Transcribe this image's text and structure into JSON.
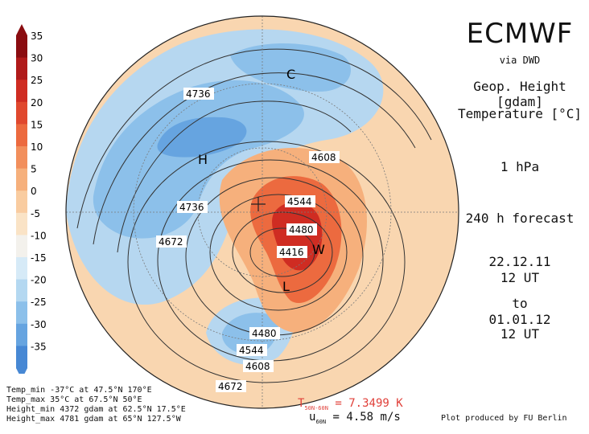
{
  "header": {
    "title": "ECMWF",
    "source": "via DWD",
    "param1": "Geop. Height [gdam]",
    "param2": "Temperature [°C]",
    "level": "1 hPa",
    "forecast": "240 h forecast",
    "date_from": "22.12.11",
    "time_from": "12 UT",
    "to": "to",
    "date_to": "01.01.12",
    "time_to": "12 UT"
  },
  "colorbar": {
    "ticks": [
      "35",
      "30",
      "25",
      "20",
      "15",
      "10",
      "5",
      "0",
      "-5",
      "-10",
      "-15",
      "-20",
      "-25",
      "-30",
      "-35"
    ],
    "colors": [
      "#8a0c10",
      "#b01a1a",
      "#cf2c22",
      "#e0482e",
      "#ec6a3f",
      "#f28f5c",
      "#f6b07c",
      "#f9cca0",
      "#fae3c6",
      "#f3f1ec",
      "#d6eaf7",
      "#b4d8f1",
      "#8cc0ea",
      "#66a4e0",
      "#4788d4"
    ]
  },
  "map": {
    "pressure_systems": [
      {
        "label": "C"
      },
      {
        "label": "H"
      },
      {
        "label": "W"
      },
      {
        "label": "L"
      }
    ],
    "contour_labels": [
      "4736",
      "4736",
      "4672",
      "4608",
      "4544",
      "4480",
      "4416",
      "4480",
      "4544",
      "4608",
      "4672"
    ]
  },
  "stats": [
    "Temp_min -37°C at 47.5°N 170°E",
    "Temp_max 35°C at 67.5°N 50°E",
    "Height_min 4372 gdam at 62.5°N 17.5°E",
    "Height_max 4781 gdam at 65°N 127.5°W"
  ],
  "footer": {
    "tdiff_sym": "T",
    "tdiff_sub": "50N-60N",
    "tdiff_val": "= 7.3499 K",
    "uwind_sym": "u",
    "uwind_sub": "60N",
    "uwind_val": "= 4.58 m/s",
    "credit": "Plot produced by FU Berlin"
  }
}
